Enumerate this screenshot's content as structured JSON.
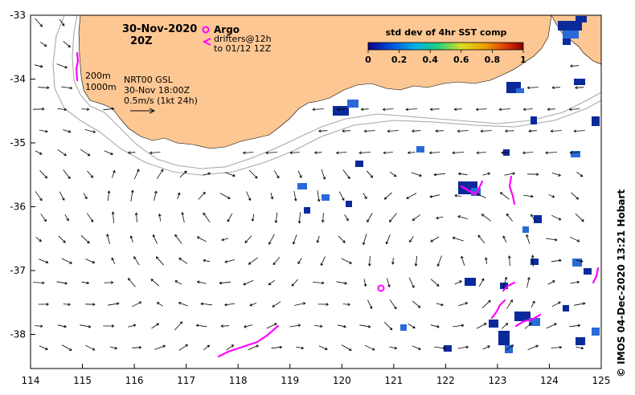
{
  "header": {
    "date": "30-Nov-2020",
    "time": "20Z"
  },
  "legend": {
    "argo_label": "Argo",
    "drifters_line1": "drifters@12h",
    "drifters_line2": "to 01/12 12Z",
    "isobath_200": "200m",
    "isobath_1000": "1000m",
    "product_line1": "NRT00 GSL",
    "product_line2": "30-Nov 18:00Z",
    "vector_scale": "0.5m/s (1kt 24h)"
  },
  "colorbar": {
    "title": "std dev of 4hr SST comp",
    "tick_labels": [
      "0",
      "0.2",
      "0.4",
      "0.6",
      "0.8",
      "1"
    ]
  },
  "axes": {
    "x_ticks": [
      "114",
      "115",
      "116",
      "117",
      "118",
      "119",
      "120",
      "121",
      "122",
      "123",
      "124",
      "125"
    ],
    "y_ticks": [
      "-33",
      "-34",
      "-35",
      "-36",
      "-37",
      "-38"
    ]
  },
  "credit": "© IMOS 04-Dec-2020 13:21 Hobart",
  "colors": {
    "land": "#fdc793",
    "drifter": "#ff00ff",
    "cloud_dark": "#0a2a9a",
    "cloud_mid": "#2a6ad8",
    "isobath": "#a8a8a8"
  }
}
